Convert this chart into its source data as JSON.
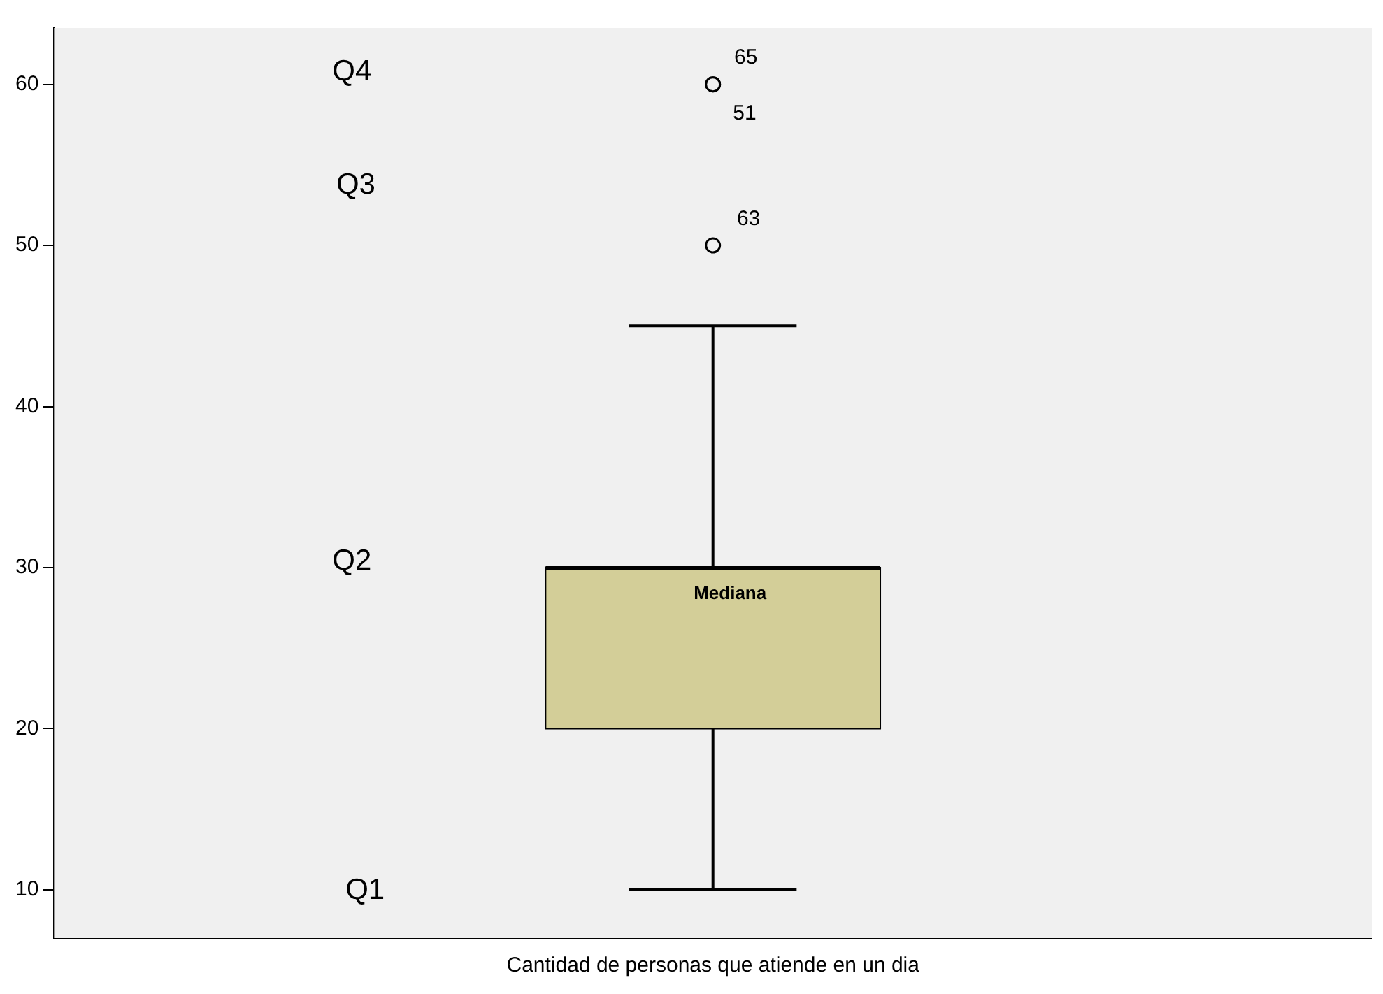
{
  "chart_data": {
    "type": "box",
    "categories": [
      "Cantidad de personas que atiende en un dia"
    ],
    "boxes": [
      {
        "low": 10,
        "q1": 20,
        "median": 30,
        "q3": 30,
        "high": 45,
        "outliers": [
          50,
          60,
          60
        ]
      }
    ],
    "color": "#d3ce98",
    "ylim": [
      7,
      63.5
    ],
    "yticks": [
      10,
      20,
      30,
      40,
      50,
      60
    ],
    "grid": false,
    "legend": false,
    "annotations": [
      "Q4",
      "Q3",
      "Q2",
      "Q1",
      "65",
      "51",
      "63",
      "Mediana"
    ]
  }
}
